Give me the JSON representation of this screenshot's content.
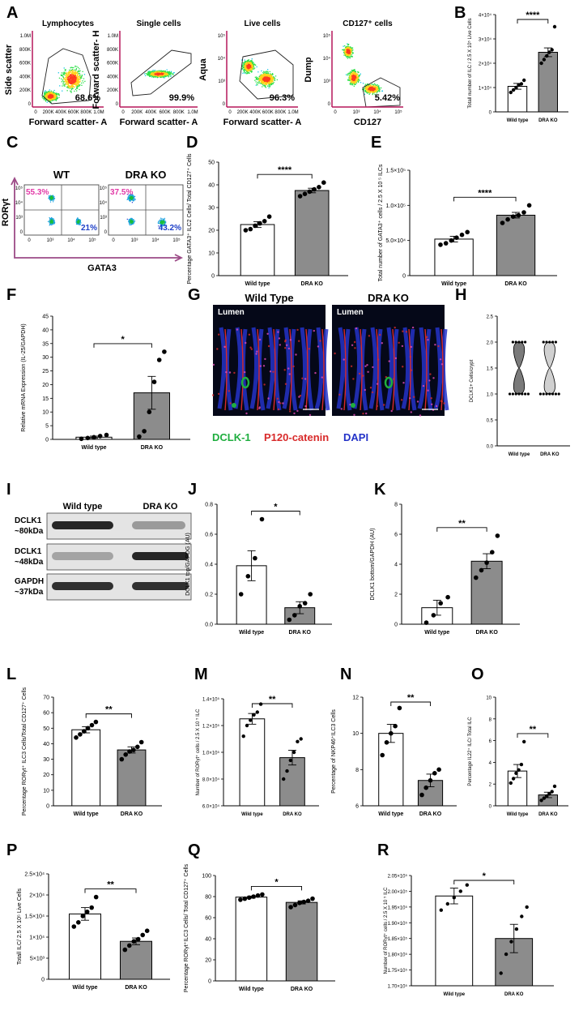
{
  "colors": {
    "bar_wt": "#ffffff",
    "bar_ko": "#8c8c8c",
    "flow_axis": "#b5175a",
    "quad_axis": "#9c4b87",
    "pink": "#e23aa7",
    "blue": "#1e3fc7",
    "green": "#1fae3f",
    "red": "#d82a2a",
    "dapi": "#2433c8"
  },
  "panel_labels": [
    "A",
    "B",
    "C",
    "D",
    "E",
    "F",
    "G",
    "H",
    "I",
    "J",
    "K",
    "L",
    "M",
    "N",
    "O",
    "P",
    "Q",
    "R"
  ],
  "flow_A": [
    {
      "title": "Lymphocytes",
      "xlabel": "Forward scatter- A",
      "ylabel": "Side scatter",
      "pct": "68.6%",
      "yticks": [
        "1.0M",
        "800K",
        "600K",
        "400K",
        "200K",
        "0"
      ],
      "xticks": [
        "0",
        "200K",
        "400K",
        "600K",
        "800K",
        "1.0M"
      ]
    },
    {
      "title": "Single cells",
      "xlabel": "Forward scatter- A",
      "ylabel": "Forward scatter- H",
      "pct": "99.9%",
      "yticks": [
        "1.0M",
        "800K",
        "600K",
        "400K",
        "200K",
        "0"
      ],
      "xticks": [
        "0",
        "200K",
        "400K",
        "600K",
        "800K",
        "1.0M"
      ]
    },
    {
      "title": "Live cells",
      "xlabel": "Forward scatter- A",
      "ylabel": "Aqua",
      "pct": "96.3%",
      "yticks": [
        "10⁵",
        "10⁴",
        "10³",
        "0"
      ],
      "xticks": [
        "0",
        "200K",
        "400K",
        "600K",
        "800K",
        "1.0M"
      ]
    },
    {
      "title": "CD127⁺ cells",
      "xlabel": "CD127",
      "ylabel": "Dump",
      "pct": "5.42%",
      "yticks": [
        "10⁵",
        "10⁴",
        "10³",
        "0"
      ],
      "xticks": [
        "0",
        "10³",
        "10⁴",
        "10⁵"
      ]
    }
  ],
  "flow_C": {
    "xlabel": "GATA3",
    "ylabel": "RORγt",
    "plots": [
      {
        "title": "WT",
        "upper_left": "55.3%",
        "lower_right": "21%"
      },
      {
        "title": "DRA KO",
        "upper_left": "37.5%",
        "lower_right": "43.2%"
      }
    ],
    "yticks": [
      "10⁵",
      "10⁴",
      "10³",
      "0"
    ],
    "xticks": [
      "0",
      "10³",
      "10⁴",
      "10⁵"
    ]
  },
  "G": {
    "titles": [
      "Wild Type",
      "DRA KO"
    ],
    "lumen": "Lumen",
    "legend": [
      "DCLK-1",
      "P120-catenin",
      "DAPI"
    ]
  },
  "I": {
    "headers": [
      "Wild type",
      "DRA KO"
    ],
    "rows": [
      {
        "label1": "DCLK1",
        "label2": "~80kDa"
      },
      {
        "label1": "DCLK1",
        "label2": "~48kDa"
      },
      {
        "label1": "GAPDH",
        "label2": "~37kDa"
      }
    ]
  },
  "chart_data": [
    {
      "panel": "B",
      "type": "bar",
      "categories": [
        "Wild type",
        "DRA KO"
      ],
      "ylabel": "Totall number of ILC / 2.5 X 10⁵ Live Cells",
      "yticks": [
        "0",
        "1×10⁴",
        "2×10⁴",
        "3×10⁴",
        "4×10⁴"
      ],
      "ylim": [
        0,
        40000
      ],
      "tick_values": [
        0,
        10000,
        20000,
        30000,
        40000
      ],
      "values": [
        10500,
        24500
      ],
      "errors": [
        1200,
        1800
      ],
      "points": [
        [
          8000,
          9000,
          10000,
          11000,
          11500,
          13000
        ],
        [
          20000,
          21500,
          23000,
          24500,
          25500,
          35000
        ]
      ],
      "sig": "****"
    },
    {
      "panel": "D",
      "type": "bar",
      "categories": [
        "Wild type",
        "DRA KO"
      ],
      "ylabel": "Percentage GATA3⁺ ILC2 Cells/ Total CD127⁺ Cells",
      "yticks": [
        "0",
        "10",
        "20",
        "30",
        "40",
        "50"
      ],
      "ylim": [
        0,
        50
      ],
      "tick_values": [
        0,
        10,
        20,
        30,
        40,
        50
      ],
      "values": [
        22.5,
        37.5
      ],
      "errors": [
        1.3,
        1.0
      ],
      "points": [
        [
          20,
          20.5,
          22,
          23,
          24,
          26
        ],
        [
          35,
          36,
          37,
          38,
          39,
          41
        ]
      ],
      "sig": "****"
    },
    {
      "panel": "E",
      "type": "bar",
      "categories": [
        "Wild type",
        "DRA KO"
      ],
      "ylabel": "Total number of GATA3⁺ cells / 2.5 X 10 ⁵ ILCs",
      "yticks": [
        "0",
        "5.0×10⁴",
        "1.0×10⁵",
        "1.5×10⁵"
      ],
      "ylim": [
        0,
        150000
      ],
      "tick_values": [
        0,
        50000,
        100000,
        150000
      ],
      "values": [
        52000,
        86000
      ],
      "errors": [
        4000,
        4000
      ],
      "points": [
        [
          44000,
          46000,
          50000,
          54000,
          58000,
          62000
        ],
        [
          75000,
          80000,
          84000,
          86000,
          90000,
          100000
        ]
      ],
      "sig": "****"
    },
    {
      "panel": "F",
      "type": "bar",
      "categories": [
        "Wild type",
        "DRA KO"
      ],
      "ylabel": "Relative mRNA Expression (IL-25/GAPDH)",
      "yticks": [
        "0",
        "5",
        "10",
        "15",
        "20",
        "25",
        "30",
        "35",
        "40",
        "45"
      ],
      "ylim": [
        0,
        45
      ],
      "tick_values": [
        0,
        5,
        10,
        15,
        20,
        25,
        30,
        35,
        40,
        45
      ],
      "values": [
        0.8,
        17
      ],
      "errors": [
        0.4,
        6
      ],
      "points": [
        [
          0.2,
          0.5,
          0.8,
          1.2,
          1.6
        ],
        [
          1,
          3,
          10,
          21,
          29,
          32
        ]
      ],
      "sig": "*"
    },
    {
      "panel": "H",
      "type": "violin",
      "categories": [
        "Wild type",
        "DRA KO"
      ],
      "ylabel": "DCLK1+ Cells/crypt",
      "yticks": [
        "0.0",
        "0.5",
        "1.0",
        "1.5",
        "2.0",
        "2.5"
      ],
      "ylim": [
        0,
        2.5
      ],
      "tick_values": [
        0,
        0.5,
        1,
        1.5,
        2,
        2.5
      ],
      "points": [
        [
          1,
          1,
          1,
          1,
          1,
          1,
          1,
          2,
          2,
          2,
          2,
          2
        ],
        [
          1,
          1,
          1,
          1,
          1,
          1,
          1,
          2,
          2,
          2,
          2,
          2
        ]
      ]
    },
    {
      "panel": "J",
      "type": "bar",
      "categories": [
        "Wild type",
        "DRA KO"
      ],
      "ylabel": "DCLK1 top/GAPDG (AU)",
      "yticks": [
        "0.0",
        "0.2",
        "0.4",
        "0.6",
        "0.8"
      ],
      "ylim": [
        0,
        0.8
      ],
      "tick_values": [
        0,
        0.2,
        0.4,
        0.6,
        0.8
      ],
      "values": [
        0.39,
        0.11
      ],
      "errors": [
        0.1,
        0.04
      ],
      "points": [
        [
          0.2,
          0.32,
          0.44,
          0.7
        ],
        [
          0.03,
          0.06,
          0.12,
          0.14,
          0.2
        ]
      ],
      "sig": "*"
    },
    {
      "panel": "K",
      "type": "bar",
      "categories": [
        "Wild type",
        "DRA KO"
      ],
      "ylabel": "DCLK1 bottom/GAPDH (AU)",
      "yticks": [
        "0",
        "2",
        "4",
        "6",
        "8"
      ],
      "ylim": [
        0,
        8
      ],
      "tick_values": [
        0,
        2,
        4,
        6,
        8
      ],
      "values": [
        1.1,
        4.2
      ],
      "errors": [
        0.5,
        0.5
      ],
      "points": [
        [
          0.1,
          0.6,
          1.4,
          1.8
        ],
        [
          3.1,
          3.6,
          4.1,
          4.8,
          5.9
        ]
      ],
      "sig": "**"
    },
    {
      "panel": "L",
      "type": "bar",
      "categories": [
        "Wild type",
        "DRA KO"
      ],
      "ylabel": "Percentage RORγt⁺ ILC3 Cells/Total CD127⁺ Cells",
      "yticks": [
        "0",
        "10",
        "20",
        "30",
        "40",
        "50",
        "60",
        "70"
      ],
      "ylim": [
        0,
        70
      ],
      "tick_values": [
        0,
        10,
        20,
        30,
        40,
        50,
        60,
        70
      ],
      "values": [
        49,
        36
      ],
      "errors": [
        2,
        2
      ],
      "points": [
        [
          44,
          46,
          48,
          50,
          52,
          54
        ],
        [
          30,
          33,
          35,
          36,
          38,
          41
        ]
      ],
      "sig": "**"
    },
    {
      "panel": "M",
      "type": "bar",
      "categories": [
        "Wild type",
        "DRA KO"
      ],
      "ylabel": "Number of RORγt⁺ cells / 2.5 X 10 ⁵ ILC",
      "yticks": [
        "6.0×10⁴",
        "8.0×10⁴",
        "1.0×10⁵",
        "1.2×10⁵",
        "1.4×10⁵"
      ],
      "ylim": [
        60000,
        140000
      ],
      "tick_values": [
        60000,
        80000,
        100000,
        120000,
        140000
      ],
      "values": [
        125000,
        96000
      ],
      "errors": [
        4000,
        5500
      ],
      "points": [
        [
          112000,
          120000,
          124000,
          128000,
          130000,
          136000
        ],
        [
          80000,
          86000,
          94000,
          100000,
          108000,
          110000
        ]
      ],
      "sig": "**"
    },
    {
      "panel": "N",
      "type": "bar",
      "categories": [
        "Wild type",
        "DRA KO"
      ],
      "ylabel": "Percentage of NKP46⁺ILC3 Cells",
      "yticks": [
        "6",
        "8",
        "10",
        "12"
      ],
      "ylim": [
        6,
        12
      ],
      "tick_values": [
        6,
        8,
        10,
        12
      ],
      "values": [
        10,
        7.4
      ],
      "errors": [
        0.5,
        0.35
      ],
      "points": [
        [
          8.8,
          9.5,
          10,
          10.4,
          11.4
        ],
        [
          6.6,
          7,
          7.4,
          7.8,
          8
        ]
      ],
      "sig": "**"
    },
    {
      "panel": "O",
      "type": "bar",
      "categories": [
        "Wild type",
        "DRA KO"
      ],
      "ylabel": "Percentage IL22⁺ ILC/ Total ILC",
      "yticks": [
        "0",
        "2",
        "4",
        "6",
        "8",
        "10"
      ],
      "ylim": [
        0,
        10
      ],
      "tick_values": [
        0,
        2,
        4,
        6,
        8,
        10
      ],
      "values": [
        3.2,
        1.0
      ],
      "errors": [
        0.6,
        0.25
      ],
      "points": [
        [
          2.1,
          2.5,
          3,
          3.3,
          3.8,
          5.9
        ],
        [
          0.5,
          0.7,
          0.9,
          1.1,
          1.3,
          1.8
        ]
      ],
      "sig": "**"
    },
    {
      "panel": "P",
      "type": "bar",
      "categories": [
        "Wild type",
        "DRA KO"
      ],
      "ylabel": "Totall ILC/ 2.5 X 10⁵ Live Cells",
      "yticks": [
        "0",
        "5×10³",
        "1×10⁴",
        "1.5×10⁴",
        "2×10⁴",
        "2.5×10⁴"
      ],
      "ylim": [
        0,
        25000
      ],
      "tick_values": [
        0,
        5000,
        10000,
        15000,
        20000,
        25000
      ],
      "values": [
        15500,
        9000
      ],
      "errors": [
        1500,
        800
      ],
      "points": [
        [
          12500,
          13500,
          15000,
          16000,
          17000,
          19500
        ],
        [
          7000,
          8000,
          9000,
          9500,
          10500,
          11500
        ]
      ],
      "sig": "**"
    },
    {
      "panel": "Q",
      "type": "bar",
      "categories": [
        "Wild type",
        "DRA KO"
      ],
      "ylabel": "Percentage RORγt⁺ILC3 Cells/ Total CD127⁺ Cells",
      "yticks": [
        "0",
        "20",
        "40",
        "60",
        "80",
        "100"
      ],
      "ylim": [
        0,
        100
      ],
      "tick_values": [
        0,
        20,
        40,
        60,
        80,
        100
      ],
      "values": [
        79.5,
        74.5
      ],
      "errors": [
        1,
        1.5
      ],
      "points": [
        [
          77,
          78,
          79,
          80,
          81,
          82
        ],
        [
          70,
          72,
          74,
          75,
          76,
          78
        ]
      ],
      "sig": "*"
    },
    {
      "panel": "R",
      "type": "bar",
      "categories": [
        "Wild type",
        "DRA KO"
      ],
      "ylabel": "Number of RORγt⁺ cells / 2.5 X 10 ⁵ ILC",
      "yticks": [
        "1.70×10⁵",
        "1.75×10⁵",
        "1.80×10⁵",
        "1.85×10⁵",
        "1.90×10⁵",
        "1.95×10⁵",
        "2.00×10⁵",
        "2.05×10⁵"
      ],
      "ylim": [
        170000,
        205000
      ],
      "tick_values": [
        170000,
        175000,
        180000,
        185000,
        190000,
        195000,
        200000,
        205000
      ],
      "values": [
        198500,
        185000
      ],
      "errors": [
        2500,
        4500
      ],
      "points": [
        [
          194000,
          196000,
          198000,
          200000,
          202000
        ],
        [
          174000,
          180000,
          184000,
          188000,
          192000,
          195000
        ]
      ],
      "sig": "*"
    }
  ]
}
